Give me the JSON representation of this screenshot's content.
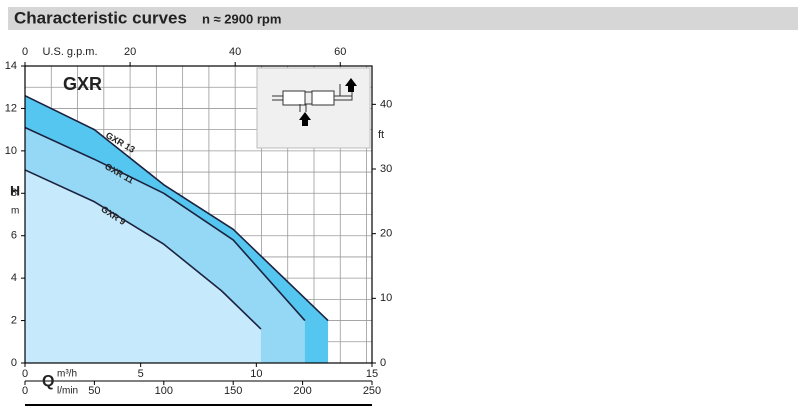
{
  "chart_data": {
    "type": "line",
    "title": "Characteristic curves",
    "subtitle": "n ≈ 2900 rpm",
    "model": "GXR",
    "ylabel": "H",
    "yunit": "m",
    "xlabel": "Q",
    "xunit": "m³/h",
    "x2label": "U.S. g.p.m.",
    "x3label": "l/min",
    "y2label": "ft",
    "xlim": [
      0,
      15
    ],
    "xticks": [
      0,
      5,
      10,
      15
    ],
    "ylim": [
      0,
      14
    ],
    "yticks": [
      0,
      2,
      4,
      6,
      8,
      10,
      12,
      14
    ],
    "x2lim": [
      0,
      66.04
    ],
    "x2ticks": [
      0,
      20,
      40,
      60
    ],
    "x3lim": [
      0,
      250
    ],
    "x3ticks": [
      0,
      50,
      100,
      150,
      200,
      250
    ],
    "y2lim": [
      0,
      45.93
    ],
    "y2ticks": [
      0,
      10,
      20,
      30,
      40
    ],
    "grid": true,
    "line_color": "#1c2340",
    "series": [
      {
        "name": "GXR 13",
        "color": "#55c6ef",
        "x": [
          0,
          3,
          6,
          9,
          13.1
        ],
        "values": [
          12.6,
          11.0,
          8.4,
          6.3,
          2.0
        ]
      },
      {
        "name": "GXR 11",
        "color": "#95d8f5",
        "x": [
          0,
          3,
          6,
          9,
          12.1
        ],
        "values": [
          11.1,
          9.6,
          8.0,
          5.8,
          2.0
        ]
      },
      {
        "name": "GXR 9",
        "color": "#c6e9fb",
        "x": [
          0,
          3,
          6,
          8.5,
          10.2
        ],
        "values": [
          9.1,
          7.6,
          5.6,
          3.4,
          1.6
        ]
      }
    ]
  }
}
